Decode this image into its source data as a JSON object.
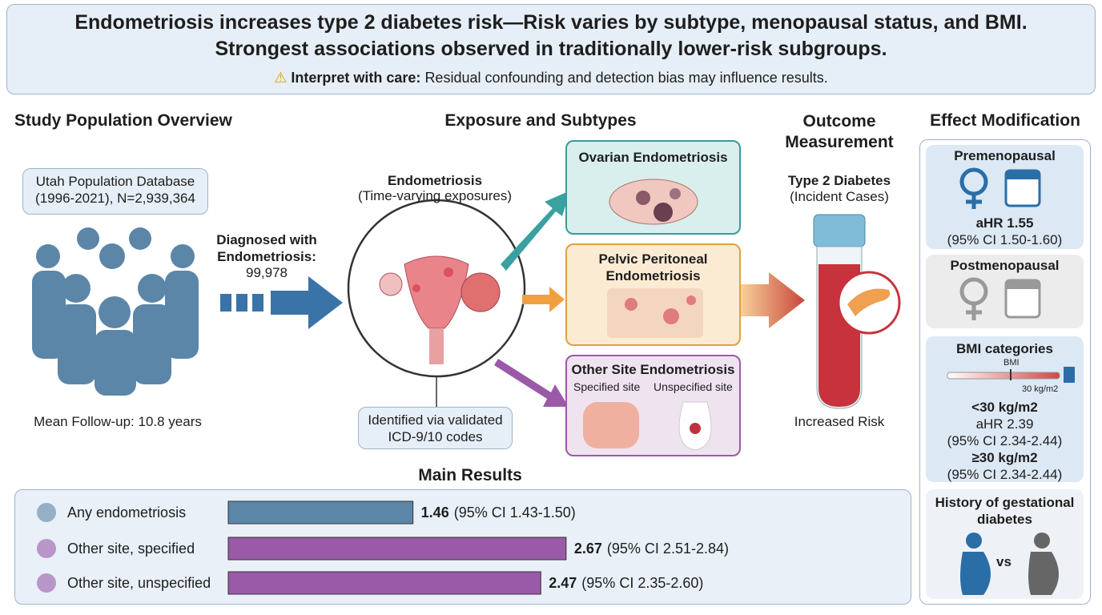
{
  "header": {
    "title_line1": "Endometriosis increases type 2 diabetes risk—Risk varies by subtype, menopausal status, and BMI.",
    "title_line2": "Strongest associations observed in traditionally lower-risk subgroups.",
    "warning_label": "Interpret with care:",
    "warning_text": "Residual confounding and detection bias may influence results."
  },
  "population": {
    "heading": "Study Population Overview",
    "database": "Utah Population Database (1996-2021), N=2,939,364",
    "followup": "Mean Follow-up: 10.8 years",
    "diagnosed_label": "Diagnosed with Endometriosis:",
    "diagnosed_count": "99,978"
  },
  "exposure": {
    "heading": "Exposure and Subtypes",
    "label": "Endometriosis",
    "sublabel": "(Time-varying exposures)",
    "identified": "Identified via validated ICD-9/10 codes",
    "subtypes": [
      {
        "title": "Ovarian Endometriosis"
      },
      {
        "title": "Pelvic Peritoneal Endometriosis"
      },
      {
        "title": "Other Site Endometriosis",
        "left": "Specified site",
        "right": "Unspecified site"
      }
    ]
  },
  "outcome": {
    "heading": "Outcome Measurement",
    "label": "Type 2 Diabetes",
    "sublabel": "(Incident Cases)",
    "note": "Increased Risk"
  },
  "effect_modification": {
    "heading": "Effect Modification",
    "premenopausal": {
      "title": "Premenopausal",
      "ahr": "aHR 1.55",
      "ci": "(95% CI 1.50-1.60)"
    },
    "postmenopausal": {
      "title": "Postmenopausal"
    },
    "bmi": {
      "title": "BMI categories",
      "scale_label": "BMI",
      "threshold": "30 kg/m2",
      "groups": [
        {
          "label": "<30 kg/m2",
          "ahr": "aHR 2.39",
          "ci": "(95% CI 2.34-2.44)"
        },
        {
          "label": "≥30 kg/m2",
          "ci": "(95% CI 2.34-2.44)"
        }
      ]
    },
    "gestational": {
      "title": "History of gestational diabetes",
      "vs": "vs"
    }
  },
  "results": {
    "heading": "Main Results",
    "rows": [
      {
        "label": "Any endometriosis",
        "value": 1.46,
        "ci": "(95% CI 1.43-1.50)",
        "color": "#5b86a8"
      },
      {
        "label": "Other site, specified",
        "value": 2.67,
        "ci": "(95% CI 2.51-2.84)",
        "color": "#9a5aa8"
      },
      {
        "label": "Other site, unspecified",
        "value": 2.47,
        "ci": "(95% CI 2.35-2.60)",
        "color": "#9a5aa8"
      }
    ]
  }
}
